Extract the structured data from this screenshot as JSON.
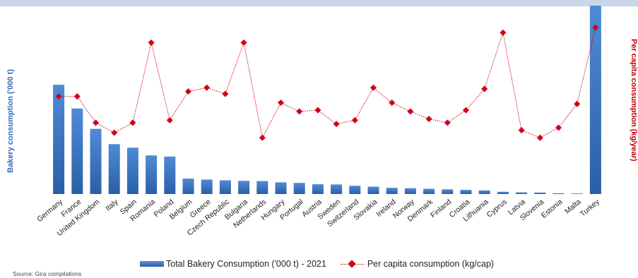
{
  "chart_data": {
    "type": "bar",
    "categories": [
      "Germany",
      "France",
      "United Kingdom",
      "Italy",
      "Spain",
      "Romania",
      "Poland",
      "Belgium",
      "Greece",
      "Czech Republic",
      "Bulgaria",
      "Netherlands",
      "Hungary",
      "Portugal",
      "Austria",
      "Sweden",
      "Switzerland",
      "Slovakia",
      "Ireland",
      "Norway",
      "Denmark",
      "Finland",
      "Croatia",
      "Lithuania",
      "Cyprus",
      "Latvia",
      "Slovenia",
      "Estonia",
      "Malta",
      "Turkey"
    ],
    "series": [
      {
        "name": "Total Bakery Consumption ('000 t) - 2021",
        "kind": "bar",
        "axis": "left",
        "color": "#2f6bb8",
        "values": [
          5800,
          4540,
          3460,
          2650,
          2460,
          2050,
          1990,
          820,
          770,
          730,
          700,
          690,
          620,
          590,
          520,
          510,
          440,
          390,
          330,
          310,
          280,
          250,
          220,
          190,
          120,
          90,
          80,
          40,
          30,
          10000
        ]
      },
      {
        "name": "Per capita consumption (kg/cap)",
        "kind": "line",
        "axis": "right",
        "color": "#d0021b",
        "values": [
          78,
          78,
          57,
          49,
          57,
          121,
          59,
          82,
          85,
          80,
          121,
          45,
          73,
          66,
          67,
          56,
          59,
          85,
          73,
          66,
          60,
          57,
          67,
          84,
          129,
          51,
          45,
          53,
          72,
          133
        ]
      }
    ],
    "ylabel_left": "Bakery consumption ('000 t)",
    "ylabel_right": "Per capita consumption (kg/year)",
    "ylim_left": [
      0,
      10000
    ],
    "ylim_right": [
      0,
      150
    ],
    "grid": false,
    "legend_position": "bottom"
  },
  "legend": {
    "bar_label": "Total Bakery Consumption ('000 t) - 2021",
    "line_label": "Per capita consumption (kg/cap)"
  },
  "source": "Source: Gira compilations"
}
